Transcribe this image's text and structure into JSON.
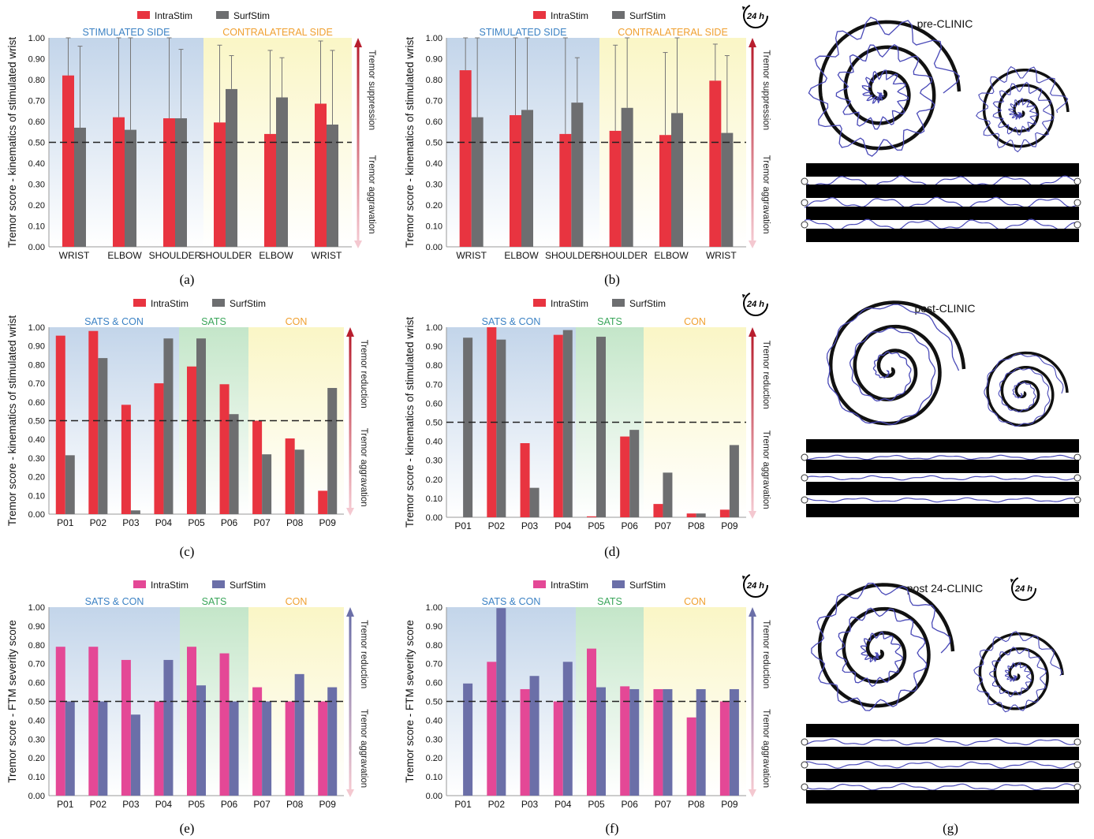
{
  "colors": {
    "intra_red": "#e83440",
    "surf_gray": "#6d6e70",
    "intra_pink": "#e44896",
    "surf_blue": "#6b6fa8",
    "bg_blue": "#c3d5ea",
    "bg_yellow": "#faf6c6",
    "bg_green": "#c4e6c9",
    "label_blue": "#3c82c4",
    "label_green": "#3aa65a",
    "label_orange": "#f0a030",
    "arrow_top": "#b81e2e",
    "arrow_top_blue": "#6b6fa8",
    "arrow_bottom": "#f4c8d0"
  },
  "icons": {
    "clock": "24h-clock-icon"
  },
  "badge": {
    "clock": "24 h"
  },
  "arrows": {
    "suppression": "Tremor suppression",
    "reduction": "Tremor reduction",
    "aggravation": "Tremor aggravation"
  },
  "yaxis": {
    "kinematics": "Tremor score - kinematics of stimulated wrist",
    "ftm": "Tremor score - FTM severity score"
  },
  "chart_data": [
    {
      "panel": "a",
      "caption": "(a)",
      "type": "bar",
      "clock": false,
      "legend": [
        "IntraStim",
        "SurfStim"
      ],
      "region_labels": [
        "STIMULATED SIDE",
        "CONTRALATERAL SIDE"
      ],
      "categories": [
        "WRIST",
        "ELBOW",
        "SHOULDER",
        "SHOULDER",
        "ELBOW",
        "WRIST"
      ],
      "series": [
        {
          "name": "IntraStim",
          "values": [
            0.82,
            0.62,
            0.615,
            0.595,
            0.54,
            0.685
          ],
          "err_top": [
            1.0,
            1.0,
            1.0,
            0.965,
            0.94,
            0.985
          ]
        },
        {
          "name": "SurfStim",
          "values": [
            0.57,
            0.56,
            0.615,
            0.755,
            0.715,
            0.585
          ],
          "err_top": [
            0.96,
            1.0,
            0.945,
            0.915,
            0.905,
            0.94
          ]
        }
      ],
      "ylim": [
        0,
        1
      ],
      "reference_line": 0.5,
      "ylabel": "Tremor score - kinematics of stimulated wrist"
    },
    {
      "panel": "b",
      "caption": "(b)",
      "type": "bar",
      "clock": true,
      "legend": [
        "IntraStim",
        "SurfStim"
      ],
      "region_labels": [
        "STIMULATED SIDE",
        "CONTRALATERAL SIDE"
      ],
      "categories": [
        "WRIST",
        "ELBOW",
        "SHOULDER",
        "SHOULDER",
        "ELBOW",
        "WRIST"
      ],
      "series": [
        {
          "name": "IntraStim",
          "values": [
            0.845,
            0.63,
            0.54,
            0.555,
            0.535,
            0.795
          ],
          "err_top": [
            1.0,
            1.0,
            1.0,
            0.965,
            0.93,
            0.97
          ]
        },
        {
          "name": "SurfStim",
          "values": [
            0.62,
            0.655,
            0.69,
            0.665,
            0.64,
            0.545
          ],
          "err_top": [
            1.0,
            1.0,
            0.905,
            1.0,
            1.0,
            0.915
          ]
        }
      ],
      "ylim": [
        0,
        1
      ],
      "reference_line": 0.5,
      "ylabel": "Tremor score - kinematics of stimulated wrist"
    },
    {
      "panel": "c",
      "caption": "(c)",
      "type": "bar",
      "clock": false,
      "legend": [
        "IntraStim",
        "SurfStim"
      ],
      "region_labels": [
        "SATS & CON",
        "SATS",
        "CON"
      ],
      "categories": [
        "P01",
        "P02",
        "P03",
        "P04",
        "P05",
        "P06",
        "P07",
        "P08",
        "P09"
      ],
      "series": [
        {
          "name": "IntraStim",
          "values": [
            0.955,
            0.98,
            0.585,
            0.7,
            0.79,
            0.695,
            0.5,
            0.405,
            0.125
          ]
        },
        {
          "name": "SurfStim",
          "values": [
            0.315,
            0.835,
            0.02,
            0.94,
            0.94,
            0.535,
            0.32,
            0.345,
            0.675
          ]
        }
      ],
      "ylim": [
        0,
        1
      ],
      "reference_line": 0.5,
      "ylabel": "Tremor score - kinematics of stimulated wrist"
    },
    {
      "panel": "d",
      "caption": "(d)",
      "type": "bar",
      "clock": true,
      "legend": [
        "IntraStim",
        "SurfStim"
      ],
      "region_labels": [
        "SATS & CON",
        "SATS",
        "CON"
      ],
      "categories": [
        "P01",
        "P02",
        "P03",
        "P04",
        "P05",
        "P06",
        "P07",
        "P08",
        "P09"
      ],
      "series": [
        {
          "name": "IntraStim",
          "values": [
            0,
            1.0,
            0.39,
            0.96,
            0.005,
            0.425,
            0.07,
            0.02,
            0.04
          ]
        },
        {
          "name": "SurfStim",
          "values": [
            0.945,
            0.935,
            0.155,
            0.985,
            0.95,
            0.46,
            0.235,
            0.02,
            0.38
          ]
        }
      ],
      "ylim": [
        0,
        1
      ],
      "reference_line": 0.5,
      "ylabel": "Tremor score - kinematics of stimulated wrist"
    },
    {
      "panel": "e",
      "caption": "(e)",
      "type": "bar",
      "clock": false,
      "legend": [
        "IntraStim",
        "SurfStim"
      ],
      "region_labels": [
        "SATS & CON",
        "SATS",
        "CON"
      ],
      "categories": [
        "P01",
        "P02",
        "P03",
        "P04",
        "P05",
        "P06",
        "P07",
        "P08",
        "P09"
      ],
      "series": [
        {
          "name": "IntraStim",
          "values": [
            0.79,
            0.79,
            0.72,
            0.5,
            0.79,
            0.755,
            0.575,
            0.5,
            0.5
          ]
        },
        {
          "name": "SurfStim",
          "values": [
            0.5,
            0.5,
            0.43,
            0.72,
            0.585,
            0.5,
            0.5,
            0.645,
            0.575
          ]
        }
      ],
      "ylim": [
        0,
        1
      ],
      "reference_line": 0.5,
      "ylabel": "Tremor score - FTM severity score"
    },
    {
      "panel": "f",
      "caption": "(f)",
      "type": "bar",
      "clock": true,
      "legend": [
        "IntraStim",
        "SurfStim"
      ],
      "region_labels": [
        "SATS & CON",
        "SATS",
        "CON"
      ],
      "categories": [
        "P01",
        "P02",
        "P03",
        "P04",
        "P05",
        "P06",
        "P07",
        "P08",
        "P09"
      ],
      "series": [
        {
          "name": "IntraStim",
          "values": [
            0,
            0.71,
            0.565,
            0.5,
            0.78,
            0.58,
            0.565,
            0.415,
            0.5
          ]
        },
        {
          "name": "SurfStim",
          "values": [
            0.595,
            0.995,
            0.635,
            0.71,
            0.575,
            0.565,
            0.565,
            0.565,
            0.565
          ]
        }
      ],
      "ylim": [
        0,
        1
      ],
      "reference_line": 0.5,
      "ylabel": "Tremor score - FTM severity score"
    }
  ],
  "drawings": [
    {
      "panel": "g1",
      "title": "pre-CLINIC",
      "clock": false
    },
    {
      "panel": "g2",
      "title": "post-CLINIC",
      "clock": false
    },
    {
      "panel": "g3",
      "title": "post 24-CLINIC",
      "clock": true
    }
  ],
  "captions": {
    "g": "(g)"
  }
}
